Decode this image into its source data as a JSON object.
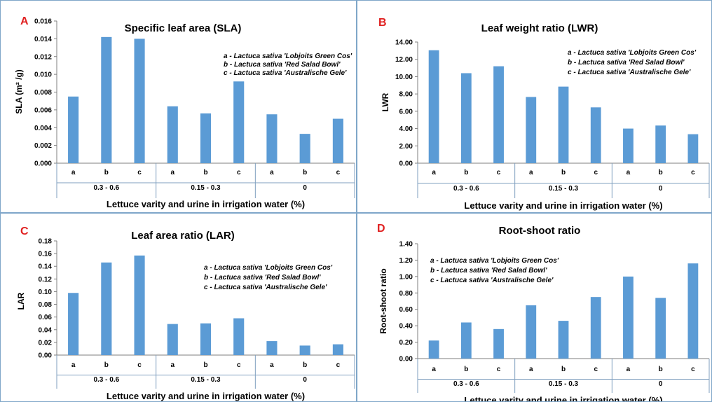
{
  "chart_data": [
    {
      "id": "A",
      "type": "bar",
      "title": "Specific leaf area (SLA)",
      "ylabel": "SLA (m² /g)",
      "xlabel": "Lettuce varity and urine in irrigation water (%)",
      "ylim": [
        0,
        0.016
      ],
      "yticks": [
        "0.000",
        "0.002",
        "0.004",
        "0.006",
        "0.008",
        "0.010",
        "0.012",
        "0.014",
        "0.016"
      ],
      "categories": [
        "a",
        "b",
        "c",
        "a",
        "b",
        "c",
        "a",
        "b",
        "c"
      ],
      "groups": [
        "0.3 - 0.6",
        "0.15 - 0.3",
        "0"
      ],
      "values": [
        0.0075,
        0.0142,
        0.014,
        0.0064,
        0.0056,
        0.0092,
        0.0055,
        0.0033,
        0.005
      ],
      "legend": [
        "a - Lactuca sativa 'Lobjoits Green Cos'",
        "b - Lactuca sativa 'Red Salad Bowl'",
        "c - Lactuca sativa 'Australische Gele'"
      ],
      "legend_position": "top-right",
      "grid": false
    },
    {
      "id": "B",
      "type": "bar",
      "title": "Leaf weight ratio (LWR)",
      "ylabel": "LWR",
      "xlabel": "Lettuce varity and urine in irrigation water (%)",
      "ylim": [
        0,
        14
      ],
      "yticks": [
        "0.00",
        "2.00",
        "4.00",
        "6.00",
        "8.00",
        "10.00",
        "12.00",
        "14.00"
      ],
      "categories": [
        "a",
        "b",
        "c",
        "a",
        "b",
        "c",
        "a",
        "b",
        "c"
      ],
      "groups": [
        "0.3 - 0.6",
        "0.15 - 0.3",
        "0"
      ],
      "values": [
        13.05,
        10.4,
        11.2,
        7.65,
        8.85,
        6.45,
        4.0,
        4.35,
        3.35
      ],
      "legend": [
        "a - Lactuca sativa 'Lobjoits Green Cos'",
        "b - Lactuca sativa 'Red Salad Bowl'",
        "c - Lactuca sativa 'Australische Gele'"
      ],
      "legend_position": "top-right",
      "grid": false
    },
    {
      "id": "C",
      "type": "bar",
      "title": "Leaf area ratio (LAR)",
      "ylabel": "LAR",
      "xlabel": "Lettuce varity and urine in irrigation water (%)",
      "ylim": [
        0,
        0.18
      ],
      "yticks": [
        "0.00",
        "0.02",
        "0.04",
        "0.06",
        "0.08",
        "0.10",
        "0.12",
        "0.14",
        "0.16",
        "0.18"
      ],
      "categories": [
        "a",
        "b",
        "c",
        "a",
        "b",
        "c",
        "a",
        "b",
        "c"
      ],
      "groups": [
        "0.3 - 0.6",
        "0.15 - 0.3",
        "0"
      ],
      "values": [
        0.098,
        0.146,
        0.157,
        0.049,
        0.05,
        0.058,
        0.022,
        0.015,
        0.017
      ],
      "legend": [
        "a - Lactuca sativa 'Lobjoits Green Cos'",
        "b - Lactuca sativa 'Red Salad Bowl'",
        "c - Lactuca sativa 'Australische Gele'"
      ],
      "legend_position": "top-right",
      "grid": false
    },
    {
      "id": "D",
      "type": "bar",
      "title": "Root-shoot ratio",
      "ylabel": "Root-shoot ratio",
      "xlabel": "Lettuce varity and urine in irrigation water (%)",
      "ylim": [
        0,
        1.4
      ],
      "yticks": [
        "0.00",
        "0.20",
        "0.40",
        "0.60",
        "0.80",
        "1.00",
        "1.20",
        "1.40"
      ],
      "categories": [
        "a",
        "b",
        "c",
        "a",
        "b",
        "c",
        "a",
        "b",
        "c"
      ],
      "groups": [
        "0.3 - 0.6",
        "0.15 - 0.3",
        "0"
      ],
      "values": [
        0.22,
        0.44,
        0.36,
        0.65,
        0.46,
        0.75,
        1.0,
        0.74,
        1.16
      ],
      "legend": [
        "a - Lactuca sativa 'Lobjoits Green Cos'",
        "b - Lactuca sativa 'Red Salad Bowl'",
        "c - Lactuca sativa 'Australische Gele'"
      ],
      "legend_position": "top-left",
      "grid": false
    }
  ],
  "colors": {
    "bar": "#5b9bd5",
    "panel_letter": "#e02020",
    "panel_border": "#7fa6c9"
  }
}
